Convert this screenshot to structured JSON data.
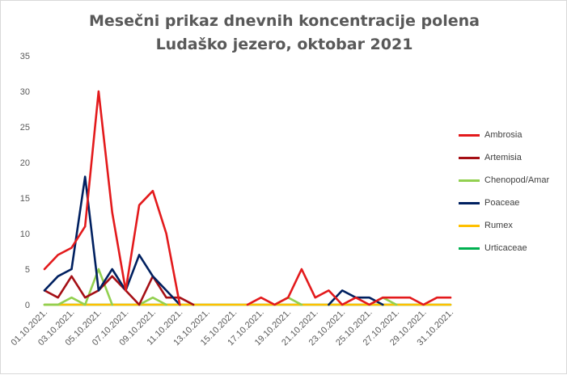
{
  "chart_data": {
    "type": "line",
    "title_lines": [
      "Mesečni prikaz dnevnih koncentracije polena",
      "Ludaško jezero, oktobar 2021"
    ],
    "xlabel": "",
    "ylabel": "",
    "ylim": [
      0,
      35
    ],
    "yticks": [
      0,
      5,
      10,
      15,
      20,
      25,
      30,
      35
    ],
    "grid": false,
    "legend_position": "right",
    "categories": [
      "01.10.2021.",
      "02.10.2021.",
      "03.10.2021.",
      "04.10.2021.",
      "05.10.2021.",
      "06.10.2021.",
      "07.10.2021.",
      "08.10.2021.",
      "09.10.2021.",
      "10.10.2021.",
      "11.10.2021.",
      "12.10.2021.",
      "13.10.2021.",
      "14.10.2021.",
      "15.10.2021.",
      "16.10.2021.",
      "17.10.2021.",
      "18.10.2021.",
      "19.10.2021.",
      "20.10.2021.",
      "21.10.2021.",
      "22.10.2021.",
      "23.10.2021.",
      "24.10.2021.",
      "25.10.2021.",
      "26.10.2021.",
      "27.10.2021.",
      "28.10.2021.",
      "29.10.2021.",
      "30.10.2021.",
      "31.10.2021."
    ],
    "visible_tick_labels": [
      "01.10.2021.",
      "03.10.2021.",
      "05.10.2021.",
      "07.10.2021.",
      "09.10.2021.",
      "11.10.2021.",
      "13.10.2021.",
      "15.10.2021.",
      "17.10.2021.",
      "19.10.2021.",
      "21.10.2021.",
      "23.10.2021.",
      "25.10.2021.",
      "27.10.2021.",
      "29.10.2021.",
      "31.10.2021."
    ],
    "series": [
      {
        "name": "Ambrosia",
        "color": "#e31a1c",
        "values": [
          5,
          7,
          8,
          11,
          30,
          13,
          2,
          14,
          16,
          10,
          0,
          null,
          null,
          null,
          null,
          0,
          1,
          0,
          1,
          5,
          1,
          2,
          0,
          1,
          0,
          1,
          1,
          1,
          0,
          1,
          1
        ]
      },
      {
        "name": "Artemisia",
        "color": "#a50f15",
        "values": [
          2,
          1,
          4,
          1,
          2,
          4,
          2,
          0,
          4,
          1,
          1,
          0,
          null,
          null,
          null,
          null,
          null,
          null,
          null,
          null,
          null,
          null,
          null,
          null,
          null,
          null,
          null,
          null,
          null,
          null,
          null
        ]
      },
      {
        "name": "Chenopod/Amar",
        "color": "#92d050",
        "values": [
          0,
          0,
          1,
          0,
          5,
          0,
          null,
          0,
          1,
          0,
          null,
          null,
          null,
          null,
          null,
          null,
          null,
          0,
          1,
          0,
          null,
          null,
          null,
          null,
          0,
          1,
          0,
          null,
          null,
          null,
          null
        ]
      },
      {
        "name": "Poaceae",
        "color": "#002060",
        "values": [
          2,
          4,
          5,
          18,
          2,
          5,
          2,
          7,
          4,
          2,
          0,
          null,
          null,
          null,
          null,
          null,
          null,
          null,
          null,
          null,
          null,
          0,
          2,
          1,
          1,
          0,
          null,
          null,
          null,
          null,
          null
        ]
      },
      {
        "name": "Rumex",
        "color": "#ffc000",
        "values": [
          0,
          0,
          0,
          0,
          0,
          0,
          0,
          0,
          0,
          0,
          0,
          0,
          0,
          0,
          0,
          0,
          0,
          0,
          0,
          0,
          0,
          0,
          0,
          0,
          0,
          0,
          0,
          0,
          0,
          0,
          0
        ]
      },
      {
        "name": "Urticaceae",
        "color": "#00b050",
        "values": [
          0,
          0,
          0,
          0,
          0,
          0,
          0,
          0,
          0,
          0,
          0,
          0,
          0,
          0,
          0,
          0,
          0,
          0,
          0,
          0,
          0,
          0,
          0,
          0,
          0,
          0,
          0,
          0,
          0,
          0,
          0
        ]
      }
    ]
  }
}
